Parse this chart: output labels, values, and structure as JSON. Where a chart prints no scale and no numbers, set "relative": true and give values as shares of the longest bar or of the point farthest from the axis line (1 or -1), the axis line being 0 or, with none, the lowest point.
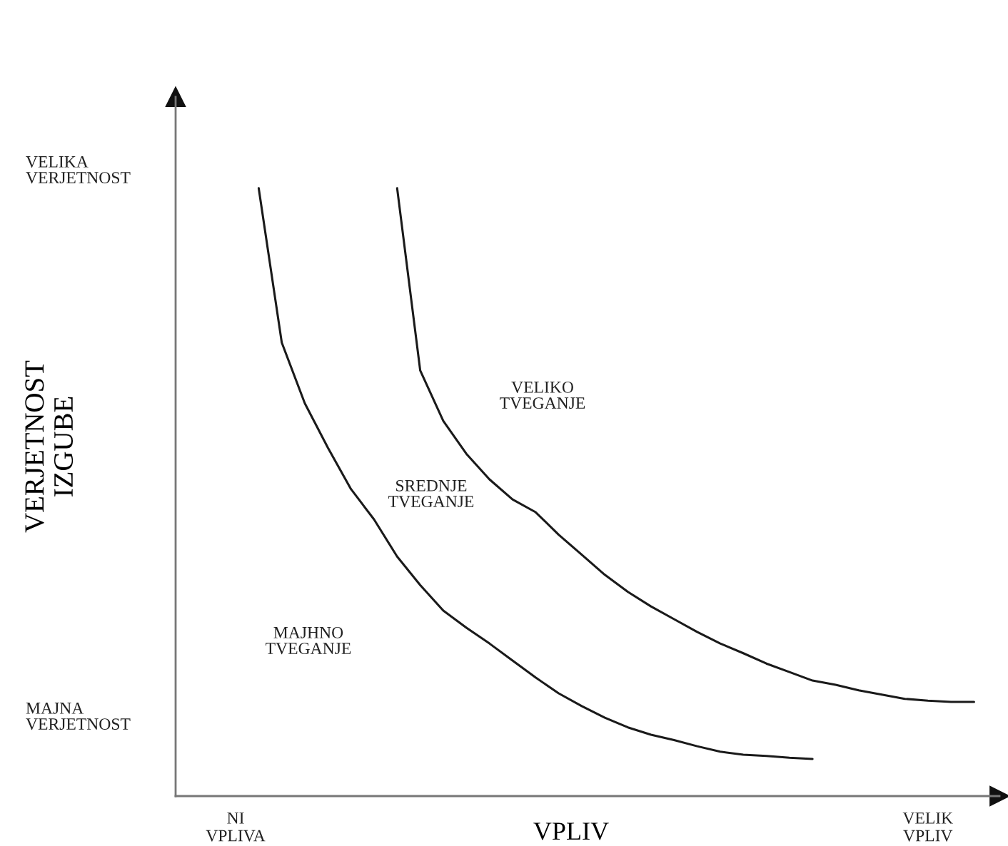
{
  "chart_data": {
    "type": "line",
    "xlabel": "VPLIV",
    "ylabel": "VERJETNOST\nIZGUBE",
    "relative": true,
    "categories": [
      "NI\nVPLIVA",
      null,
      null,
      null,
      null,
      null,
      null,
      null,
      null,
      null,
      null,
      null,
      null,
      null,
      null,
      null,
      null,
      null,
      null,
      null,
      null,
      null,
      null,
      null,
      null,
      null,
      null,
      null,
      null,
      null,
      "VELIK\nVPLIV",
      null,
      null
    ],
    "grid": false,
    "legend": false,
    "marker": "none",
    "line_style": "solid",
    "series": [
      {
        "color": "#1a1a1a",
        "values": [
          null,
          1.0,
          0.746,
          0.646,
          0.573,
          0.505,
          0.455,
          0.394,
          0.347,
          0.305,
          0.277,
          0.251,
          0.223,
          0.195,
          0.169,
          0.148,
          0.129,
          0.113,
          0.101,
          0.092,
          0.082,
          0.073,
          0.068,
          0.066,
          0.063,
          0.061,
          null,
          null,
          null,
          null,
          null,
          null,
          null
        ]
      },
      {
        "color": "#1a1a1a",
        "values": [
          null,
          null,
          null,
          null,
          null,
          null,
          null,
          1.0,
          0.7,
          0.617,
          0.563,
          0.521,
          0.488,
          0.467,
          0.43,
          0.397,
          0.364,
          0.336,
          0.312,
          0.291,
          0.27,
          0.251,
          0.235,
          0.218,
          0.204,
          0.19,
          0.183,
          0.174,
          0.167,
          0.16,
          0.157,
          0.155,
          0.155
        ]
      }
    ],
    "annotations": [
      "VELIKA\nVERJETNOST",
      "VELIKO\nTVEGANJE",
      "SREDNJE\nTVEGANJE",
      "MAJHNO\nTVEGANJE",
      "MAJNA\nVERJETNOST"
    ]
  }
}
